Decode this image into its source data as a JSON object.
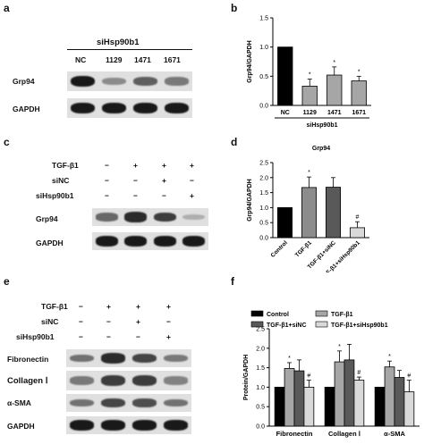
{
  "panel_labels": {
    "a": "a",
    "b": "b",
    "c": "c",
    "d": "d",
    "e": "e",
    "f": "f"
  },
  "blot_a": {
    "group_label": "siHsp90b1",
    "lanes": [
      "NC",
      "1129",
      "1471",
      "1671"
    ],
    "rows": [
      "Grp94",
      "GAPDH"
    ],
    "intensity": {
      "Grp94": [
        1.0,
        0.35,
        0.6,
        0.45
      ],
      "GAPDH": [
        1.0,
        1.0,
        1.0,
        1.0
      ]
    }
  },
  "blot_c": {
    "conditions": [
      {
        "label": "TGF-β1",
        "marks": [
          "−",
          "+",
          "+",
          "+"
        ]
      },
      {
        "label": "siNC",
        "marks": [
          "−",
          "−",
          "+",
          "−"
        ]
      },
      {
        "label": "siHsp90b1",
        "marks": [
          "−",
          "−",
          "−",
          "+"
        ]
      }
    ],
    "rows": [
      "Grp94",
      "GAPDH"
    ],
    "intensity": {
      "Grp94": [
        0.55,
        0.9,
        0.8,
        0.15
      ],
      "GAPDH": [
        1.0,
        1.0,
        1.0,
        1.0
      ]
    }
  },
  "blot_e": {
    "conditions": [
      {
        "label": "TGF-β1",
        "marks": [
          "−",
          "+",
          "+",
          "+"
        ]
      },
      {
        "label": "siNC",
        "marks": [
          "−",
          "−",
          "+",
          "−"
        ]
      },
      {
        "label": "siHsp90b1",
        "marks": [
          "−",
          "−",
          "−",
          "+"
        ]
      }
    ],
    "rows": [
      "Fibronectin",
      "Collagen Ⅰ",
      "α-SMA",
      "GAPDH"
    ],
    "intensity": {
      "Fibronectin": [
        0.5,
        0.9,
        0.75,
        0.45
      ],
      "Collagen Ⅰ": [
        0.45,
        0.8,
        0.8,
        0.4
      ],
      "α-SMA": [
        0.5,
        0.75,
        0.7,
        0.5
      ],
      "GAPDH": [
        1.0,
        1.0,
        1.0,
        1.0
      ]
    }
  },
  "chart_data": [
    {
      "type": "bar",
      "panel": "b",
      "ylabel": "Grp94/GAPDH",
      "categories": [
        "NC",
        "1129",
        "1471",
        "1671"
      ],
      "values": [
        1.0,
        0.33,
        0.52,
        0.42
      ],
      "errors": [
        0,
        0.12,
        0.14,
        0.08
      ],
      "sig": [
        "",
        "*",
        "*",
        "*"
      ],
      "ylim": [
        0,
        1.5
      ],
      "yticks": [
        "0.0",
        "0.5",
        "1.0",
        "1.5"
      ],
      "group_label": "siHsp90b1",
      "colors": [
        "#000000",
        "#a6a6a6",
        "#a6a6a6",
        "#a6a6a6"
      ]
    },
    {
      "type": "bar",
      "panel": "d",
      "title": "Grp94",
      "ylabel": "Grp94/GAPDH",
      "categories": [
        "Control",
        "TGF-β1",
        "TGF-β1+siNC",
        "TGF-β1+siHsp90b1"
      ],
      "values": [
        1.0,
        1.67,
        1.68,
        0.33
      ],
      "errors": [
        0,
        0.35,
        0.32,
        0.2
      ],
      "sig": [
        "",
        "*",
        "",
        "#"
      ],
      "ylim": [
        0,
        2.5
      ],
      "yticks": [
        "0.0",
        "0.5",
        "1.0",
        "1.5",
        "2.0",
        "2.5"
      ],
      "colors": [
        "#000000",
        "#8c8c8c",
        "#595959",
        "#d9d9d9"
      ]
    },
    {
      "type": "bar",
      "panel": "f",
      "ylabel": "Protein/GAPDH",
      "categories": [
        "Fibronectin",
        "Collagen Ⅰ",
        "α-SMA"
      ],
      "series": [
        {
          "name": "Control",
          "values": [
            1.0,
            1.0,
            1.0
          ],
          "errors": [
            0,
            0,
            0
          ],
          "sig": [
            "",
            "",
            ""
          ],
          "color": "#000000"
        },
        {
          "name": "TGF-β1",
          "values": [
            1.48,
            1.65,
            1.52
          ],
          "errors": [
            0.15,
            0.28,
            0.15
          ],
          "sig": [
            "*",
            "*",
            "*"
          ],
          "color": "#a6a6a6"
        },
        {
          "name": "TGF-β1+siNC",
          "values": [
            1.42,
            1.7,
            1.25
          ],
          "errors": [
            0.28,
            0.4,
            0.18
          ],
          "sig": [
            "",
            "",
            ""
          ],
          "color": "#595959"
        },
        {
          "name": "TGF-β1+siHsp90b1",
          "values": [
            1.0,
            1.18,
            0.88
          ],
          "errors": [
            0.18,
            0.08,
            0.3
          ],
          "sig": [
            "#",
            "#",
            "#"
          ],
          "color": "#d9d9d9"
        }
      ],
      "ylim": [
        0,
        2.5
      ],
      "yticks": [
        "0.0",
        "0.5",
        "1.0",
        "1.5",
        "2.0",
        "2.5"
      ]
    }
  ]
}
